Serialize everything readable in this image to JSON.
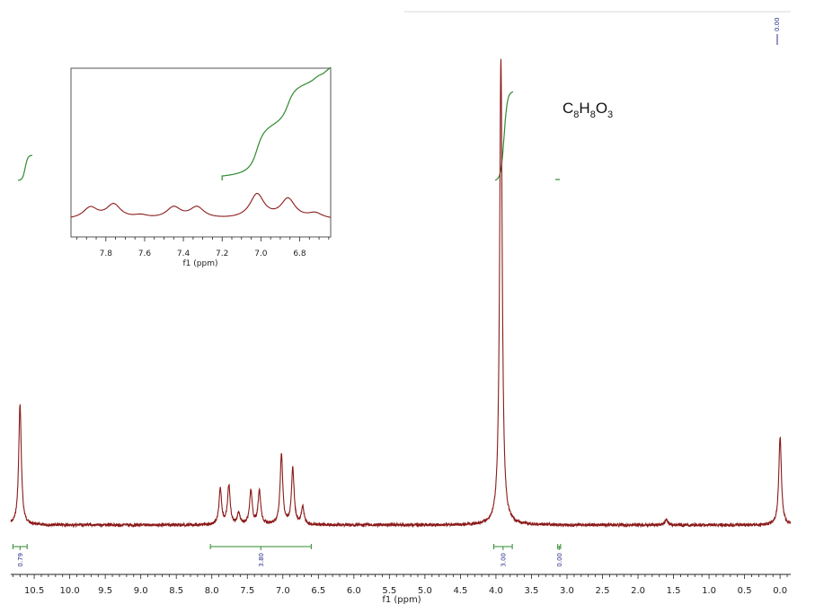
{
  "formula": {
    "C": "C",
    "c_sub": "8",
    "H": "H",
    "h_sub": "8",
    "O": "O",
    "o_sub": "3"
  },
  "colors": {
    "spectrum": "#8b1a1a",
    "integral": "#2e8b2e",
    "label": "#2b2f8c",
    "axis": "#222222"
  },
  "chart_data": [
    {
      "type": "line",
      "name": "main-spectrum",
      "xlabel": "f1 (ppm)",
      "ylabel": "",
      "xlim": [
        10.83,
        -0.15
      ],
      "x_reversed": true,
      "xticks": [
        "10.5",
        "10.0",
        "9.5",
        "9.0",
        "8.5",
        "8.0",
        "7.5",
        "7.0",
        "6.5",
        "6.0",
        "5.5",
        "5.0",
        "4.5",
        "4.0",
        "3.5",
        "3.0",
        "2.5",
        "2.0",
        "1.5",
        "1.0",
        "0.5",
        "0.0"
      ],
      "peaks": [
        {
          "ppm": 10.7,
          "height": 0.26
        },
        {
          "ppm": 7.88,
          "height": 0.076
        },
        {
          "ppm": 7.76,
          "height": 0.084
        },
        {
          "ppm": 7.62,
          "height": 0.025
        },
        {
          "ppm": 7.45,
          "height": 0.072
        },
        {
          "ppm": 7.33,
          "height": 0.072
        },
        {
          "ppm": 7.02,
          "height": 0.151
        },
        {
          "ppm": 6.86,
          "height": 0.12
        },
        {
          "ppm": 6.72,
          "height": 0.037
        },
        {
          "ppm": 3.93,
          "height": 1.0
        },
        {
          "ppm": 1.6,
          "height": 0.012
        },
        {
          "ppm": 0.0,
          "height": 0.19
        }
      ],
      "integrals": [
        {
          "from": 10.8,
          "to": 10.6,
          "value": "0.79"
        },
        {
          "from": 8.02,
          "to": 6.6,
          "value": "3.80"
        },
        {
          "from": 4.03,
          "to": 3.77,
          "value": "3.00"
        },
        {
          "from": 3.13,
          "to": 3.09,
          "value": "0.00"
        }
      ],
      "tms_label": "0.00"
    },
    {
      "type": "line",
      "name": "inset-aromatic-expansion",
      "xlabel": "f1 (ppm)",
      "xlim": [
        7.98,
        6.64
      ],
      "x_reversed": true,
      "xticks": [
        "7.8",
        "7.6",
        "7.4",
        "7.2",
        "7.0",
        "6.8"
      ],
      "peaks": [
        {
          "ppm": 7.88,
          "height": 0.3
        },
        {
          "ppm": 7.76,
          "height": 0.38
        },
        {
          "ppm": 7.62,
          "height": 0.08
        },
        {
          "ppm": 7.45,
          "height": 0.3
        },
        {
          "ppm": 7.33,
          "height": 0.3
        },
        {
          "ppm": 7.02,
          "height": 0.65
        },
        {
          "ppm": 6.86,
          "height": 0.52
        },
        {
          "ppm": 6.72,
          "height": 0.14
        }
      ]
    }
  ]
}
